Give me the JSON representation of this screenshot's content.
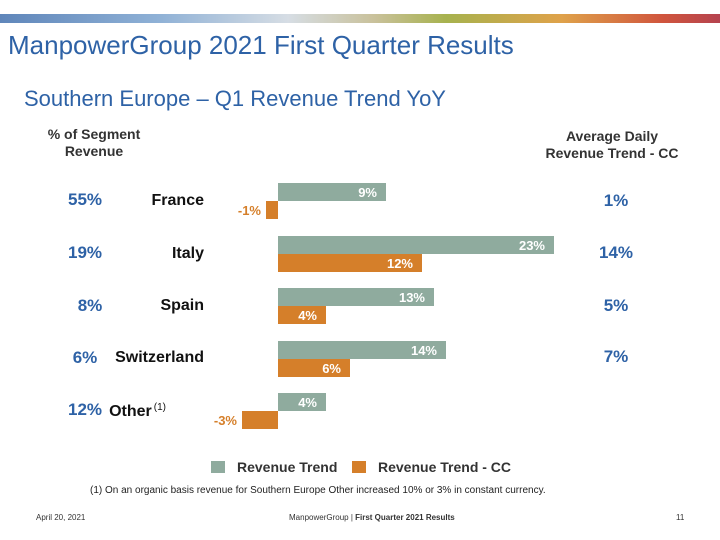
{
  "header": {
    "title": "ManpowerGroup 2021 First Quarter Results",
    "subtitle": "Southern Europe – Q1 Revenue Trend YoY"
  },
  "left_column": {
    "heading_line1": "% of Segment",
    "heading_line2": "Revenue",
    "values": [
      "55%",
      "19%",
      "8%",
      "6%",
      "12%"
    ]
  },
  "right_column": {
    "heading_line1": "Average Daily",
    "heading_line2": "Revenue Trend - CC",
    "values": [
      "1%",
      "14%",
      "5%",
      "7%"
    ]
  },
  "other_footnote_marker": "(1)",
  "chart_data": {
    "type": "bar",
    "orientation": "horizontal",
    "categories": [
      "France",
      "Italy",
      "Spain",
      "Switzerland",
      "Other"
    ],
    "series": [
      {
        "name": "Revenue Trend",
        "values": [
          9,
          23,
          13,
          14,
          4
        ],
        "labels": [
          "9%",
          "23%",
          "13%",
          "14%",
          "4%"
        ],
        "color": "#8fab9e"
      },
      {
        "name": "Revenue Trend - CC",
        "values": [
          -1,
          12,
          4,
          6,
          -3
        ],
        "labels": [
          "-1%",
          "12%",
          "4%",
          "6%",
          "-3%"
        ],
        "color": "#d57f2a"
      }
    ],
    "grid": false,
    "legend_position": "bottom"
  },
  "footnote": "(1)  On an organic basis revenue for Southern Europe Other increased 10% or 3% in constant currency.",
  "footer": {
    "date": "April 20, 2021",
    "brand": "ManpowerGroup",
    "separator": " | ",
    "doc": "First Quarter 2021 Results",
    "page": "11"
  }
}
